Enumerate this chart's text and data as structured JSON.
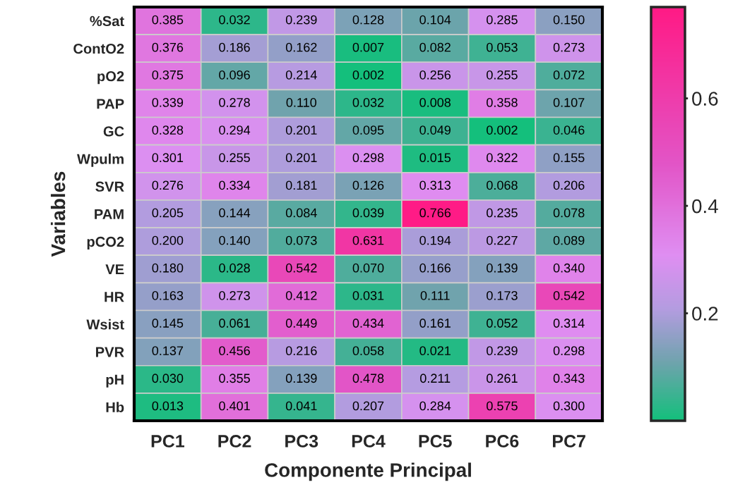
{
  "chart_data": {
    "type": "heatmap",
    "xlabel": "Componente Principal",
    "ylabel": "Variables",
    "categories": [
      "PC1",
      "PC2",
      "PC3",
      "PC4",
      "PC5",
      "PC6",
      "PC7"
    ],
    "y_categories": [
      "%Sat",
      "ContO2",
      "pO2",
      "PAP",
      "GC",
      "Wpulm",
      "SVR",
      "PAM",
      "pCO2",
      "VE",
      "HR",
      "Wsist",
      "PVR",
      "pH",
      "Hb"
    ],
    "cells": [
      [
        0.385,
        0.032,
        0.239,
        0.128,
        0.104,
        0.285,
        0.15
      ],
      [
        0.376,
        0.186,
        0.162,
        0.007,
        0.082,
        0.053,
        0.273
      ],
      [
        0.375,
        0.096,
        0.214,
        0.002,
        0.256,
        0.255,
        0.072
      ],
      [
        0.339,
        0.278,
        0.11,
        0.032,
        0.008,
        0.358,
        0.107
      ],
      [
        0.328,
        0.294,
        0.201,
        0.095,
        0.049,
        0.002,
        0.046
      ],
      [
        0.301,
        0.255,
        0.201,
        0.298,
        0.015,
        0.322,
        0.155
      ],
      [
        0.276,
        0.334,
        0.181,
        0.126,
        0.313,
        0.068,
        0.206
      ],
      [
        0.205,
        0.144,
        0.084,
        0.039,
        0.766,
        0.235,
        0.078
      ],
      [
        0.2,
        0.14,
        0.073,
        0.631,
        0.194,
        0.227,
        0.089
      ],
      [
        0.18,
        0.028,
        0.542,
        0.07,
        0.166,
        0.139,
        0.34
      ],
      [
        0.163,
        0.273,
        0.412,
        0.031,
        0.111,
        0.173,
        0.542
      ],
      [
        0.145,
        0.061,
        0.449,
        0.434,
        0.161,
        0.052,
        0.314
      ],
      [
        0.137,
        0.456,
        0.216,
        0.058,
        0.021,
        0.239,
        0.298
      ],
      [
        0.03,
        0.355,
        0.139,
        0.478,
        0.211,
        0.261,
        0.343
      ],
      [
        0.013,
        0.401,
        0.041,
        0.207,
        0.284,
        0.575,
        0.3
      ]
    ],
    "cell_labels": [
      [
        "0.385",
        "0.032",
        "0.239",
        "0.128",
        "0.104",
        "0.285",
        "0.150"
      ],
      [
        "0.376",
        "0.186",
        "0.162",
        "0.007",
        "0.082",
        "0.053",
        "0.273"
      ],
      [
        "0.375",
        "0.096",
        "0.214",
        "0.002",
        "0.256",
        "0.255",
        "0.072"
      ],
      [
        "0.339",
        "0.278",
        "0.110",
        "0.032",
        "0.008",
        "0.358",
        "0.107"
      ],
      [
        "0.328",
        "0.294",
        "0.201",
        "0.095",
        "0.049",
        "0.002",
        "0.046"
      ],
      [
        "0.301",
        "0.255",
        "0.201",
        "0.298",
        "0.015",
        "0.322",
        "0.155"
      ],
      [
        "0.276",
        "0.334",
        "0.181",
        "0.126",
        "0.313",
        "0.068",
        "0.206"
      ],
      [
        "0.205",
        "0.144",
        "0.084",
        "0.039",
        "0.766",
        "0.235",
        "0.078"
      ],
      [
        "0.200",
        "0.140",
        "0.073",
        "0.631",
        "0.194",
        "0.227",
        "0.089"
      ],
      [
        "0.180",
        "0.028",
        "0.542",
        "0.070",
        "0.166",
        "0.139",
        "0.340"
      ],
      [
        "0.163",
        "0.273",
        "0.412",
        "0.031",
        "0.111",
        "0.173",
        "0.542"
      ],
      [
        "0.145",
        "0.061",
        "0.449",
        "0.434",
        "0.161",
        "0.052",
        "0.314"
      ],
      [
        "0.137",
        "0.456",
        "0.216",
        "0.058",
        "0.021",
        "0.239",
        "0.298"
      ],
      [
        "0.030",
        "0.355",
        "0.139",
        "0.478",
        "0.211",
        "0.261",
        "0.343"
      ],
      [
        "0.013",
        "0.401",
        "0.041",
        "0.207",
        "0.284",
        "0.575",
        "0.300"
      ]
    ],
    "clim": [
      0.0,
      0.77
    ],
    "cticks": [
      0.2,
      0.4,
      0.6
    ]
  }
}
